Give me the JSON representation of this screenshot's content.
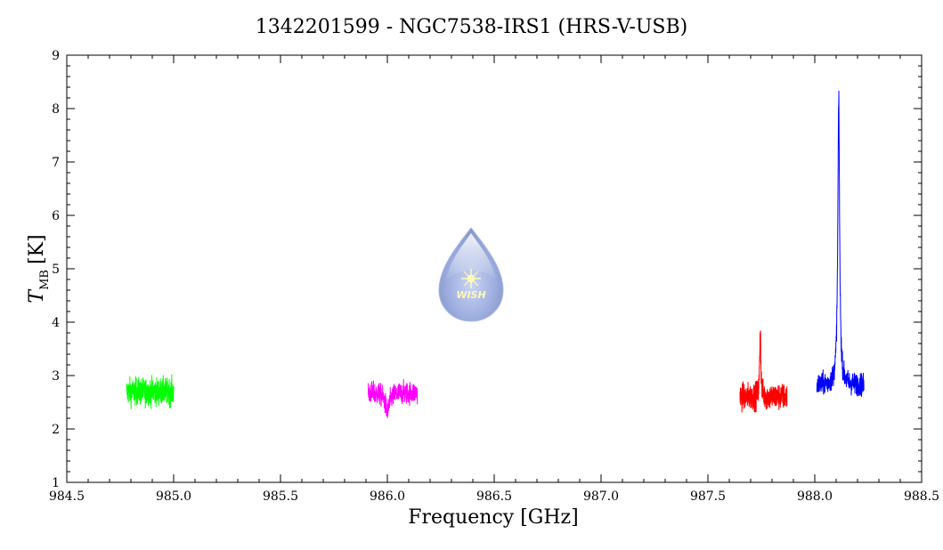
{
  "chart_data": {
    "type": "line",
    "title": "1342201599 - NGC7538-IRS1 (HRS-V-USB)",
    "xlabel": "Frequency [GHz]",
    "ylabel_symbol": "T",
    "ylabel_subscript": "MB",
    "ylabel_unit": "[K]",
    "xlim": [
      984.5,
      988.5
    ],
    "ylim": [
      1,
      9
    ],
    "x_ticks": [
      984.5,
      985.0,
      985.5,
      986.0,
      986.5,
      987.0,
      987.5,
      988.0,
      988.5
    ],
    "x_tick_labels": [
      "984.5",
      "985.0",
      "985.5",
      "986.0",
      "986.5",
      "987.0",
      "987.5",
      "988.0",
      "988.5"
    ],
    "y_ticks": [
      1,
      2,
      3,
      4,
      5,
      6,
      7,
      8,
      9
    ],
    "y_tick_labels": [
      "1",
      "2",
      "3",
      "4",
      "5",
      "6",
      "7",
      "8",
      "9"
    ],
    "grid": false,
    "watermark_text": "WISH",
    "series": [
      {
        "color": "#00ff00",
        "x_range": [
          984.78,
          985.0
        ],
        "baseline": 2.7,
        "noise": 0.18,
        "features": []
      },
      {
        "color": "#ff00ff",
        "x_range": [
          985.91,
          986.14
        ],
        "baseline": 2.68,
        "noise": 0.15,
        "features": [
          {
            "center": 986.0,
            "amplitude": -0.35,
            "width": 0.012
          }
        ]
      },
      {
        "color": "#ff0000",
        "x_range": [
          987.65,
          987.87
        ],
        "baseline": 2.6,
        "noise": 0.18,
        "features": [
          {
            "center": 987.745,
            "amplitude": 1.35,
            "width": 0.003
          }
        ]
      },
      {
        "color": "#0000ff",
        "x_range": [
          988.01,
          988.23
        ],
        "baseline": 2.82,
        "noise": 0.15,
        "features": [
          {
            "center": 988.112,
            "amplitude": 5.3,
            "width": 0.005
          }
        ]
      }
    ]
  }
}
